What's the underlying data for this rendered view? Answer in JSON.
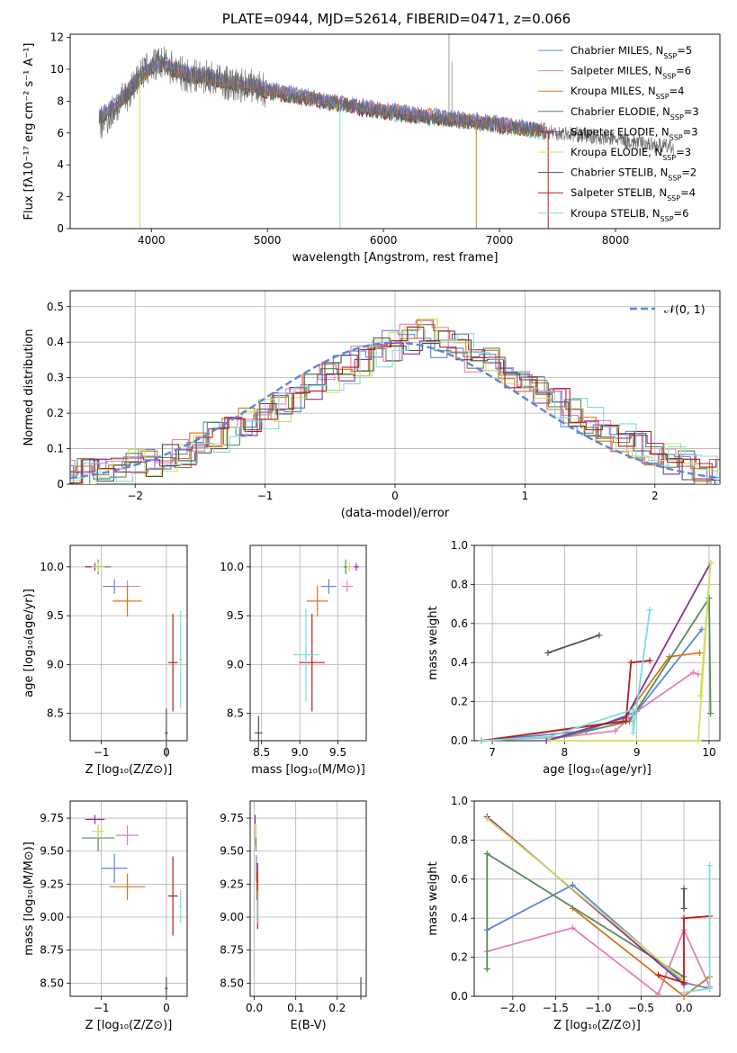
{
  "title": "PLATE=0944, MJD=52614, FIBERID=0471, z=0.066",
  "colors": {
    "Chabrier MILES": "#5b86d8",
    "Salpeter MILES": "#e57fb8",
    "Kroupa MILES": "#d4771f",
    "Chabrier ELODIE": "#5a8a5a",
    "Salpeter ELODIE": "#8e2f99",
    "Kroupa ELODIE": "#cfe05a",
    "Chabrier STELIB": "#505050",
    "Salpeter STELIB": "#b51c1c",
    "Kroupa STELIB": "#7fdbdd"
  },
  "chart_data": [
    {
      "id": "spectrum",
      "type": "line",
      "xlabel": "wavelength [Angstrom, rest frame]",
      "ylabel": "Flux [fλ10⁻¹⁷ erg cm⁻² s⁻¹ A⁻¹]",
      "xlim": [
        3300,
        8900
      ],
      "ylim": [
        0,
        12.2
      ],
      "xticks": [
        4000,
        5000,
        6000,
        7000,
        8000
      ],
      "yticks": [
        0,
        2,
        4,
        6,
        8,
        10,
        12
      ],
      "grid": false,
      "legend_position": "upper-right",
      "legend": [
        "Chabrier MILES, N_SSP=5",
        "Salpeter MILES, N_SSP=6",
        "Kroupa MILES, N_SSP=4",
        "Chabrier ELODIE, N_SSP=3",
        "Salpeter ELODIE, N_SSP=3",
        "Kroupa ELODIE, N_SSP=3",
        "Chabrier STELIB, N_SSP=2",
        "Salpeter STELIB, N_SSP=4",
        "Kroupa STELIB, N_SSP=6"
      ],
      "data_trend": [
        [
          3550,
          6.5
        ],
        [
          3700,
          7.6
        ],
        [
          3800,
          8.5
        ],
        [
          3900,
          9.6
        ],
        [
          4000,
          10.2
        ],
        [
          4100,
          10.4
        ],
        [
          4300,
          9.6
        ],
        [
          4500,
          9.5
        ],
        [
          4700,
          9.0
        ],
        [
          4900,
          9.0
        ],
        [
          5000,
          8.6
        ],
        [
          5200,
          8.3
        ],
        [
          5500,
          8.0
        ],
        [
          5800,
          7.6
        ],
        [
          6000,
          7.3
        ],
        [
          6300,
          7.0
        ],
        [
          6600,
          6.8
        ],
        [
          7000,
          6.5
        ],
        [
          7400,
          6.1
        ],
        [
          7800,
          5.8
        ],
        [
          8200,
          5.4
        ],
        [
          8500,
          5.1
        ]
      ],
      "model_trend": [
        [
          3550,
          7.0
        ],
        [
          3700,
          7.8
        ],
        [
          3800,
          8.6
        ],
        [
          3900,
          9.5
        ],
        [
          4000,
          10.1
        ],
        [
          4100,
          10.3
        ],
        [
          4300,
          9.7
        ],
        [
          4500,
          9.5
        ],
        [
          4700,
          9.1
        ],
        [
          4900,
          8.9
        ],
        [
          5000,
          8.7
        ],
        [
          5200,
          8.4
        ],
        [
          5500,
          8.0
        ],
        [
          5800,
          7.6
        ],
        [
          6000,
          7.4
        ],
        [
          6300,
          7.1
        ],
        [
          6600,
          6.9
        ],
        [
          7000,
          6.5
        ],
        [
          7400,
          6.1
        ]
      ]
    },
    {
      "id": "residuals",
      "type": "line",
      "xlabel": "(data-model)/error",
      "ylabel": "Normed distribution",
      "xlim": [
        -2.5,
        2.5
      ],
      "ylim": [
        0,
        0.545
      ],
      "xticks": [
        -2,
        -1,
        0,
        1,
        2
      ],
      "yticks": [
        0.0,
        0.1,
        0.2,
        0.3,
        0.4,
        0.5
      ],
      "grid": true,
      "legend_position": "upper-right",
      "series": [
        {
          "name": "𝒩(0, 1)",
          "mean": 0,
          "sigma": 1,
          "style": "dashed"
        }
      ],
      "histogram_bin_width": 0.1,
      "histogram_envelope": [
        0.025,
        0.03,
        0.04,
        0.05,
        0.055,
        0.06,
        0.07,
        0.085,
        0.11,
        0.13,
        0.15,
        0.17,
        0.2,
        0.22,
        0.24,
        0.27,
        0.3,
        0.32,
        0.35,
        0.37,
        0.39,
        0.41,
        0.42,
        0.4,
        0.38,
        0.36,
        0.34,
        0.31,
        0.29,
        0.26,
        0.23,
        0.2,
        0.18,
        0.16,
        0.13,
        0.11,
        0.09,
        0.07,
        0.05,
        0.04,
        0.03,
        0.025
      ]
    },
    {
      "id": "age_vs_Z",
      "type": "scatter",
      "xlabel": "Z [log₁₀(Z/Z⊙)]",
      "ylabel": "age  [log₁₀(age/yr)]",
      "xlim": [
        -1.48,
        0.32
      ],
      "ylim": [
        8.22,
        10.22
      ],
      "xticks": [
        "-1",
        "0"
      ],
      "yticks": [
        "8.5",
        "9.0",
        "9.5",
        "10.0"
      ],
      "grid": true,
      "points": [
        {
          "model": "Chabrier MILES",
          "x": -0.8,
          "y": 9.8,
          "dx": 0.35,
          "dy": 0.15
        },
        {
          "model": "Salpeter MILES",
          "x": -0.6,
          "y": 9.8,
          "dx": 0.4,
          "dy": 0.12
        },
        {
          "model": "Kroupa MILES",
          "x": -0.6,
          "y": 9.65,
          "dx": 0.45,
          "dy": 0.32
        },
        {
          "model": "Chabrier ELODIE",
          "x": -1.05,
          "y": 10.0,
          "dx": 0.4,
          "dy": 0.15
        },
        {
          "model": "Salpeter ELODIE",
          "x": -1.1,
          "y": 10.0,
          "dx": 0.3,
          "dy": 0.08
        },
        {
          "model": "Kroupa ELODIE",
          "x": -1.05,
          "y": 10.0,
          "dx": 0.2,
          "dy": 0.1
        },
        {
          "model": "Chabrier STELIB",
          "x": 0.0,
          "y": 8.3,
          "dx": 0.05,
          "dy": 0.5
        },
        {
          "model": "Salpeter STELIB",
          "x": 0.1,
          "y": 9.02,
          "dx": 0.15,
          "dy": 1.0
        },
        {
          "model": "Kroupa STELIB",
          "x": 0.22,
          "y": 9.05,
          "dx": 0.05,
          "dy": 1.0
        }
      ]
    },
    {
      "id": "age_vs_mass",
      "type": "scatter",
      "xlabel": "mass [log₁₀(M/M⊙)]",
      "ylabel": "",
      "xlim": [
        8.35,
        9.87
      ],
      "ylim": [
        8.22,
        10.22
      ],
      "xticks": [
        "8.5",
        "9.0",
        "9.5"
      ],
      "yticks": [
        "8.5",
        "9.0",
        "9.5",
        "10.0"
      ],
      "grid": true,
      "points": [
        {
          "model": "Chabrier MILES",
          "x": 9.38,
          "y": 9.8,
          "dx": 0.2,
          "dy": 0.15
        },
        {
          "model": "Salpeter MILES",
          "x": 9.62,
          "y": 9.8,
          "dx": 0.15,
          "dy": 0.12
        },
        {
          "model": "Kroupa MILES",
          "x": 9.23,
          "y": 9.65,
          "dx": 0.28,
          "dy": 0.32
        },
        {
          "model": "Chabrier ELODIE",
          "x": 9.6,
          "y": 10.0,
          "dx": 0.05,
          "dy": 0.15
        },
        {
          "model": "Salpeter ELODIE",
          "x": 9.74,
          "y": 10.0,
          "dx": 0.07,
          "dy": 0.08
        },
        {
          "model": "Kroupa ELODIE",
          "x": 9.65,
          "y": 10.0,
          "dx": 0.06,
          "dy": 0.1
        },
        {
          "model": "Chabrier STELIB",
          "x": 8.46,
          "y": 8.3,
          "dx": 0.1,
          "dy": 0.35
        },
        {
          "model": "Salpeter STELIB",
          "x": 9.16,
          "y": 9.02,
          "dx": 0.34,
          "dy": 1.0
        },
        {
          "model": "Kroupa STELIB",
          "x": 9.08,
          "y": 9.1,
          "dx": 0.34,
          "dy": 0.95
        }
      ]
    },
    {
      "id": "mass_weight_vs_age",
      "type": "line",
      "xlabel": "age  [log₁₀(age/yr)]",
      "ylabel": "mass weight",
      "xlim": [
        6.75,
        10.15
      ],
      "ylim": [
        0,
        1.0
      ],
      "xticks": [
        "7",
        "8",
        "9",
        "10"
      ],
      "yticks": [
        "0.0",
        "0.2",
        "0.4",
        "0.6",
        "0.8",
        "1.0"
      ],
      "grid": true,
      "series": [
        {
          "model": "Chabrier MILES",
          "x": [
            6.85,
            8.3,
            9.0,
            9.9
          ],
          "y": [
            0.0,
            0.05,
            0.15,
            0.57
          ]
        },
        {
          "model": "Salpeter MILES",
          "x": [
            6.85,
            8.0,
            8.7,
            9.0,
            9.78,
            9.85
          ],
          "y": [
            0.0,
            0.02,
            0.05,
            0.15,
            0.35,
            0.34
          ]
        },
        {
          "model": "Kroupa MILES",
          "x": [
            6.85,
            8.8,
            9.45,
            9.87
          ],
          "y": [
            0.0,
            0.1,
            0.43,
            0.45
          ]
        },
        {
          "model": "Chabrier ELODIE",
          "x": [
            7.75,
            8.9,
            10.0,
            10.02
          ],
          "y": [
            0.0,
            0.1,
            0.73,
            0.14
          ]
        },
        {
          "model": "Salpeter ELODIE",
          "x": [
            7.75,
            8.85,
            10.02
          ],
          "y": [
            0.0,
            0.12,
            0.91
          ]
        },
        {
          "model": "Kroupa ELODIE",
          "x": [
            7.8,
            9.85,
            10.02,
            9.88
          ],
          "y": [
            0.0,
            0.0,
            0.91,
            0.23
          ]
        },
        {
          "model": "Chabrier STELIB",
          "x": [
            7.77,
            8.48
          ],
          "y": [
            0.45,
            0.54
          ]
        },
        {
          "model": "Salpeter STELIB",
          "x": [
            6.85,
            8.85,
            8.92,
            9.18
          ],
          "y": [
            0.0,
            0.1,
            0.4,
            0.41
          ]
        },
        {
          "model": "Kroupa STELIB",
          "x": [
            6.85,
            7.78,
            8.95,
            8.95,
            9.18
          ],
          "y": [
            0.0,
            0.02,
            0.16,
            0.04,
            0.67
          ]
        }
      ]
    },
    {
      "id": "mass_vs_Z",
      "type": "scatter",
      "xlabel": "Z [log₁₀(Z/Z⊙)]",
      "ylabel": "mass [log₁₀(M/M⊙)]",
      "xlim": [
        -1.48,
        0.32
      ],
      "ylim": [
        8.4,
        9.88
      ],
      "xticks": [
        "-1",
        "0"
      ],
      "yticks": [
        "8.50",
        "8.75",
        "9.00",
        "9.25",
        "9.50",
        "9.75"
      ],
      "grid": true,
      "points": [
        {
          "model": "Chabrier MILES",
          "x": -0.8,
          "y": 9.37,
          "dx": 0.4,
          "dy": 0.22
        },
        {
          "model": "Salpeter MILES",
          "x": -0.6,
          "y": 9.62,
          "dx": 0.35,
          "dy": 0.15
        },
        {
          "model": "Kroupa MILES",
          "x": -0.6,
          "y": 9.23,
          "dx": 0.55,
          "dy": 0.2
        },
        {
          "model": "Chabrier ELODIE",
          "x": -1.05,
          "y": 9.6,
          "dx": 0.5,
          "dy": 0.2
        },
        {
          "model": "Salpeter ELODIE",
          "x": -1.1,
          "y": 9.74,
          "dx": 0.3,
          "dy": 0.07
        },
        {
          "model": "Kroupa ELODIE",
          "x": -1.05,
          "y": 9.65,
          "dx": 0.2,
          "dy": 0.1
        },
        {
          "model": "Chabrier STELIB",
          "x": 0.0,
          "y": 8.46,
          "dx": 0.05,
          "dy": 0.17
        },
        {
          "model": "Salpeter STELIB",
          "x": 0.1,
          "y": 9.16,
          "dx": 0.15,
          "dy": 0.6
        },
        {
          "model": "Kroupa STELIB",
          "x": 0.22,
          "y": 9.08,
          "dx": 0.05,
          "dy": 0.25
        }
      ]
    },
    {
      "id": "mass_vs_ebv",
      "type": "scatter",
      "xlabel": "E(B-V)",
      "ylabel": "",
      "xlim": [
        -0.01,
        0.27
      ],
      "ylim": [
        8.4,
        9.88
      ],
      "xticks": [
        "0.0",
        "0.1",
        "0.2"
      ],
      "yticks": [
        "8.50",
        "8.75",
        "9.00",
        "9.25",
        "9.50",
        "9.75"
      ],
      "grid": true,
      "points": [
        {
          "model": "Chabrier MILES",
          "x": 0.005,
          "y": 9.37,
          "dy": 0.2
        },
        {
          "model": "Salpeter MILES",
          "x": 0.003,
          "y": 9.62,
          "dy": 0.15
        },
        {
          "model": "Kroupa MILES",
          "x": 0.006,
          "y": 9.23,
          "dy": 0.2
        },
        {
          "model": "Chabrier ELODIE",
          "x": 0.004,
          "y": 9.6,
          "dy": 0.2
        },
        {
          "model": "Salpeter ELODIE",
          "x": 0.002,
          "y": 9.74,
          "dy": 0.07
        },
        {
          "model": "Kroupa ELODIE",
          "x": 0.004,
          "y": 9.65,
          "dy": 0.1
        },
        {
          "model": "Chabrier STELIB",
          "x": 0.257,
          "y": 8.46,
          "dy": 0.17
        },
        {
          "model": "Salpeter STELIB",
          "x": 0.008,
          "y": 9.16,
          "dy": 0.5
        },
        {
          "model": "Kroupa STELIB",
          "x": 0.009,
          "y": 9.08,
          "dy": 0.25
        }
      ]
    },
    {
      "id": "mass_weight_vs_Z",
      "type": "line",
      "xlabel": "Z [log₁₀(Z/Z⊙)]",
      "ylabel": "mass weight",
      "xlim": [
        -2.45,
        0.42
      ],
      "ylim": [
        0,
        1.0
      ],
      "xticks": [
        "-2.0",
        "-1.5",
        "-1.0",
        "-0.5",
        "0.0"
      ],
      "yticks": [
        "0.0",
        "0.2",
        "0.4",
        "0.6",
        "0.8",
        "1.0"
      ],
      "grid": true,
      "series": [
        {
          "model": "Chabrier MILES",
          "x": [
            -2.3,
            -1.3,
            0.0,
            0.3
          ],
          "y": [
            0.34,
            0.57,
            0.07,
            0.04
          ]
        },
        {
          "model": "Salpeter MILES",
          "x": [
            -2.3,
            -1.3,
            -0.3,
            0.0,
            0.3
          ],
          "y": [
            0.23,
            0.35,
            0.01,
            0.34,
            0.05
          ]
        },
        {
          "model": "Kroupa MILES",
          "x": [
            -1.3,
            0.0,
            0.3
          ],
          "y": [
            0.45,
            0.0,
            0.1
          ]
        },
        {
          "model": "Chabrier ELODIE",
          "x": [
            -2.3,
            -2.3,
            0.0
          ],
          "y": [
            0.14,
            0.73,
            0.1
          ]
        },
        {
          "model": "Salpeter ELODIE",
          "x": [
            -2.3,
            0.0
          ],
          "y": [
            0.92,
            0.06
          ]
        },
        {
          "model": "Kroupa ELODIE",
          "x": [
            -2.3,
            0.0
          ],
          "y": [
            0.91,
            0.08
          ]
        },
        {
          "model": "Chabrier STELIB",
          "x": [
            0.0,
            0.0
          ],
          "y": [
            0.45,
            0.55
          ]
        },
        {
          "model": "Salpeter STELIB",
          "x": [
            -0.3,
            0.0,
            0.0,
            0.3
          ],
          "y": [
            0.11,
            0.07,
            0.4,
            0.41
          ]
        },
        {
          "model": "Kroupa STELIB",
          "x": [
            0.0,
            0.3,
            0.3
          ],
          "y": [
            0.02,
            0.04,
            0.67
          ]
        }
      ]
    }
  ]
}
